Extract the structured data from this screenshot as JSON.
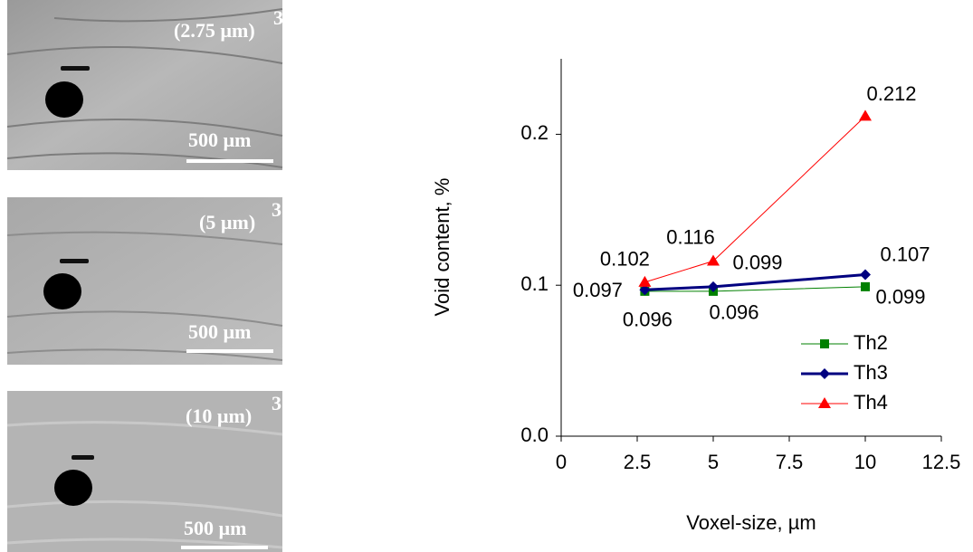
{
  "images": [
    {
      "label": "(2.75 µm)",
      "exponent": "3",
      "scale_bar": "500 µm"
    },
    {
      "label": "(5 µm)",
      "exponent": "3",
      "scale_bar": "500 µm"
    },
    {
      "label": "(10 µm)",
      "exponent": "3",
      "scale_bar": "500 µm"
    }
  ],
  "chart_data": {
    "type": "line",
    "x_label": "Voxel-size, µm",
    "y_label": "Void content, %",
    "x": [
      2.75,
      5,
      10
    ],
    "series": [
      {
        "name": "Th2",
        "color": "#008000",
        "marker": "square",
        "values": [
          0.096,
          0.096,
          0.099
        ]
      },
      {
        "name": "Th3",
        "color": "#000080",
        "marker": "diamond",
        "values": [
          0.097,
          0.099,
          0.107
        ]
      },
      {
        "name": "Th4",
        "color": "#ff0000",
        "marker": "triangle",
        "values": [
          0.102,
          0.116,
          0.212
        ]
      }
    ],
    "xlim": [
      0,
      12.5
    ],
    "xticks": [
      0,
      2.5,
      5,
      7.5,
      10,
      12.5
    ],
    "ylim": [
      0,
      0.25
    ],
    "yticks": [
      {
        "value": 0,
        "label": "0.0"
      },
      0.1,
      0.2
    ],
    "legend": "lower right",
    "grid": false
  }
}
